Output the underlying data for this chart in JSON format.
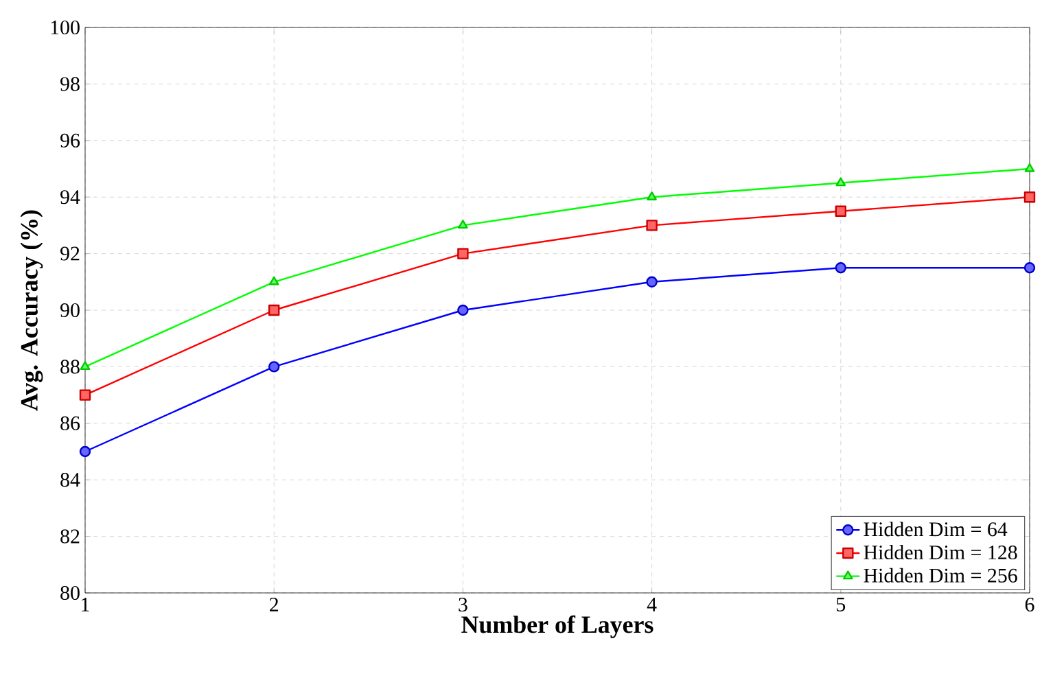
{
  "chart_data": {
    "type": "line",
    "xlabel": "Number of Layers",
    "ylabel": "Avg. Accuracy (%)",
    "x": [
      1,
      2,
      3,
      4,
      5,
      6
    ],
    "series": [
      {
        "name": "Hidden Dim = 64",
        "color": "#0000ff",
        "marker": "circle",
        "values": [
          85,
          88,
          90,
          91,
          91.5,
          91.5
        ]
      },
      {
        "name": "Hidden Dim = 128",
        "color": "#ff0000",
        "marker": "square",
        "values": [
          87,
          90,
          92,
          93,
          93.5,
          94
        ]
      },
      {
        "name": "Hidden Dim = 256",
        "color": "#00ff00",
        "marker": "triangle",
        "values": [
          88,
          91,
          93,
          94,
          94.5,
          95
        ]
      }
    ],
    "xlim": [
      1,
      6
    ],
    "xticks": [
      1,
      2,
      3,
      4,
      5,
      6
    ],
    "ylim": [
      80,
      100
    ],
    "yticks": [
      80,
      82,
      84,
      86,
      88,
      90,
      92,
      94,
      96,
      98,
      100
    ],
    "grid": true,
    "legend": "bottom right",
    "line_style": "solid"
  }
}
